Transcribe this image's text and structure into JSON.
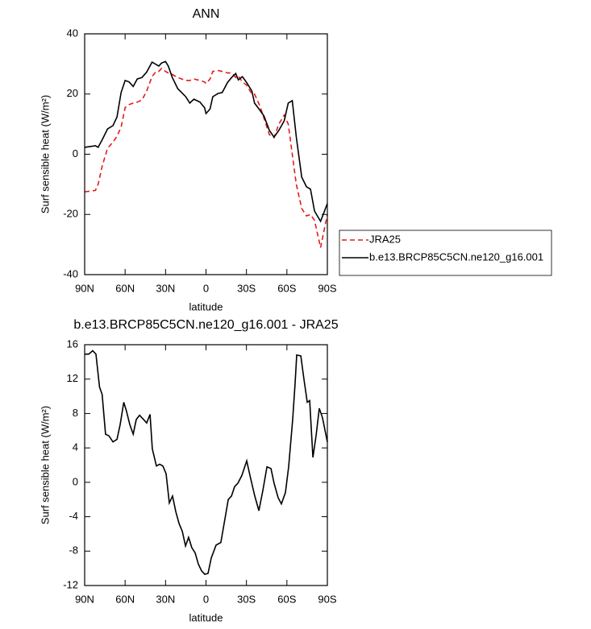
{
  "chart_data": [
    {
      "type": "line",
      "title": "ANN",
      "xlabel": "latitude",
      "ylabel": "Surf sensible heat (W/m²)",
      "x": [
        90,
        82,
        80,
        77,
        73,
        69,
        66,
        63,
        60,
        57,
        54,
        51,
        47.5,
        44,
        40,
        37,
        35,
        33,
        30,
        28,
        25,
        21,
        15,
        12,
        9,
        4.5,
        1,
        0,
        -3,
        -5,
        -9,
        -12,
        -16,
        -19,
        -22,
        -24,
        -27,
        -30,
        -34,
        -36,
        -40,
        -43,
        -47,
        -50.5,
        -54,
        -58,
        -61,
        -64,
        -67,
        -71,
        -74.5,
        -77.5,
        -80.5,
        -85,
        -90
      ],
      "series": [
        {
          "name": "JRA25",
          "color": "#e41a1c",
          "dash": true,
          "values": [
            -12.5,
            -12,
            -10,
            -4,
            2,
            4,
            6,
            9,
            15.5,
            16.5,
            17,
            17.3,
            18,
            21,
            25.8,
            27.5,
            27.5,
            28.5,
            27.5,
            27,
            26.5,
            25.5,
            24.5,
            24.5,
            25,
            24.5,
            24,
            23.5,
            25,
            27.5,
            27.8,
            27.5,
            27,
            27,
            25.5,
            26,
            24,
            23,
            20,
            20,
            16,
            12,
            6.5,
            5.5,
            10,
            13,
            10,
            0,
            -10,
            -18,
            -20.5,
            -20,
            -22,
            -31,
            -20
          ]
        },
        {
          "name": "b.e13.BRCP85C5CN.ne120_g16.001",
          "color": "#000000",
          "dash": false,
          "values": [
            2.3,
            2.8,
            2.3,
            4.8,
            8.4,
            9.5,
            12.4,
            20.5,
            24.5,
            24,
            22.5,
            25,
            25.5,
            27.3,
            30.6,
            29.8,
            29.3,
            30.3,
            30.8,
            29.3,
            25.5,
            21.8,
            19.1,
            17,
            18.3,
            17.3,
            15.4,
            13.5,
            15,
            19.1,
            20.2,
            20.5,
            23.9,
            25.5,
            26.8,
            24.7,
            25.8,
            23.9,
            21,
            17,
            14.6,
            12.7,
            7.9,
            5.7,
            7.9,
            11.1,
            17,
            17.8,
            5.7,
            -7.6,
            -10.8,
            -11.6,
            -18.9,
            -22.3,
            -16.4
          ]
        }
      ],
      "xlim": [
        90,
        -90
      ],
      "ylim": [
        -40,
        40
      ],
      "xticks": [
        {
          "value": 90,
          "label": "90N"
        },
        {
          "value": 60,
          "label": "60N"
        },
        {
          "value": 30,
          "label": "30N"
        },
        0,
        {
          "value": -30,
          "label": "30S"
        },
        {
          "value": -60,
          "label": "60S"
        },
        {
          "value": -90,
          "label": "90S"
        }
      ],
      "yticks": [
        -40,
        -20,
        0,
        20,
        40
      ],
      "legend": "right"
    },
    {
      "type": "line",
      "title": "b.e13.BRCP85C5CN.ne120_g16.001 - JRA25",
      "xlabel": "latitude",
      "ylabel": "Surf sensible heat (W/m²)",
      "x": [
        90,
        87,
        84,
        81.6,
        79,
        77,
        74.5,
        72,
        69,
        66,
        63.7,
        61,
        59,
        56.5,
        54,
        51.7,
        49.3,
        46.3,
        44,
        41.5,
        39.8,
        36.8,
        34.4,
        32,
        29.6,
        27.2,
        24.8,
        22.4,
        20,
        17.6,
        15.2,
        12.9,
        10.5,
        8.1,
        5.7,
        3.3,
        0.9,
        -1.5,
        -3.9,
        -7.5,
        -11,
        -14,
        -16.5,
        -18.9,
        -21.2,
        -23.7,
        -26.6,
        -30.2,
        -32.6,
        -36.2,
        -39.2,
        -42.2,
        -45.2,
        -48.2,
        -50.5,
        -53.5,
        -55.9,
        -58.9,
        -61.3,
        -64.3,
        -66.1,
        -67.3,
        -70.3,
        -72.7,
        -75.1,
        -76.9,
        -79.3,
        -81.6,
        -84,
        -86.4,
        -90
      ],
      "values": [
        14.9,
        14.9,
        15.3,
        14.9,
        11.1,
        10.2,
        5.6,
        5.4,
        4.7,
        5.0,
        6.7,
        9.3,
        8.3,
        6.7,
        5.6,
        7.3,
        7.8,
        7.3,
        6.9,
        7.9,
        3.9,
        1.9,
        2.1,
        1.9,
        1.0,
        -2.4,
        -1.6,
        -3.4,
        -4.8,
        -5.7,
        -7.4,
        -6.4,
        -7.6,
        -8.2,
        -9.5,
        -10.3,
        -10.7,
        -10.6,
        -8.8,
        -7.3,
        -7.0,
        -4.3,
        -2.0,
        -1.6,
        -0.5,
        -0.1,
        0.8,
        2.5,
        0.8,
        -1.6,
        -3.3,
        -0.9,
        1.8,
        1.6,
        -0.1,
        -1.8,
        -2.5,
        -1.2,
        1.8,
        7.3,
        11.5,
        14.8,
        14.7,
        11.9,
        9.3,
        9.5,
        2.9,
        5.4,
        8.6,
        7.5,
        4.7
      ],
      "color": "#000000",
      "xlim": [
        90,
        -90
      ],
      "ylim": [
        -12,
        16
      ],
      "xticks": [
        {
          "value": 90,
          "label": "90N"
        },
        {
          "value": 60,
          "label": "60N"
        },
        {
          "value": 30,
          "label": "30N"
        },
        0,
        {
          "value": -30,
          "label": "30S"
        },
        {
          "value": -60,
          "label": "60S"
        },
        {
          "value": -90,
          "label": "90S"
        }
      ],
      "yticks": [
        -12,
        -8,
        -4,
        0,
        4,
        8,
        12,
        16
      ]
    }
  ]
}
